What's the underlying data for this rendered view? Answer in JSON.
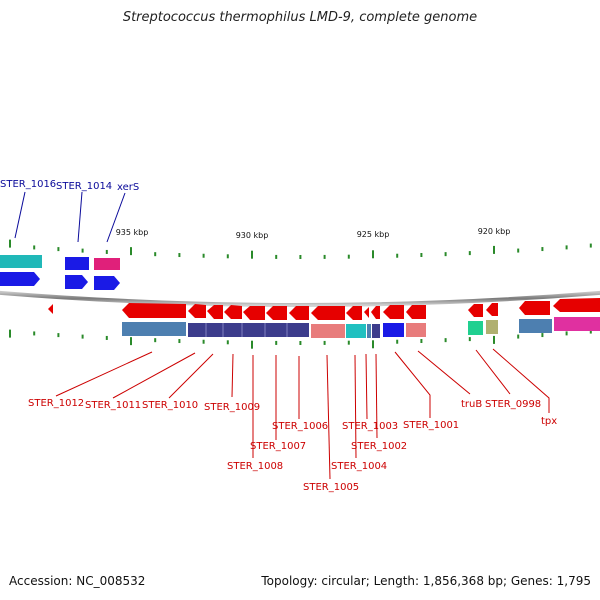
{
  "title": "Streptococcus thermophilus LMD-9, complete genome",
  "footer": {
    "accession": "Accession: NC_008532",
    "topology": "Topology: circular; Length: 1,856,368 bp; Genes: 1,795"
  },
  "scale_labels": [
    {
      "kbp": 935,
      "text": "935 kbp"
    },
    {
      "kbp": 930,
      "text": "930 kbp"
    },
    {
      "kbp": 925,
      "text": "925 kbp"
    },
    {
      "kbp": 920,
      "text": "920 kbp"
    }
  ],
  "colors": {
    "backbone": "#888888",
    "label_forward": "#0a0a9a",
    "label_reverse": "#cc0000",
    "tick": "#2a8a2a",
    "forward_gene": "#1a1ae6",
    "reverse_gene": "#e60000"
  },
  "top_labels": [
    {
      "text": "STER_1016",
      "color": "#0a0a9a"
    },
    {
      "text": "STER_1014",
      "color": "#0a0a9a"
    },
    {
      "text": "xerS",
      "color": "#0a0a9a"
    }
  ],
  "bottom_labels": [
    {
      "text": "STER_1012"
    },
    {
      "text": "STER_1011"
    },
    {
      "text": "STER_1010"
    },
    {
      "text": "STER_1009"
    },
    {
      "text": "STER_1008"
    },
    {
      "text": "STER_1007"
    },
    {
      "text": "STER_1006"
    },
    {
      "text": "STER_1005"
    },
    {
      "text": "STER_1004"
    },
    {
      "text": "STER_1003"
    },
    {
      "text": "STER_1002"
    },
    {
      "text": "STER_1001"
    },
    {
      "text": "truB"
    },
    {
      "text": "STER_0998"
    },
    {
      "text": "tpx"
    }
  ],
  "feature_colors": {
    "teal": "#20b8b8",
    "blue": "#1a1ae6",
    "magenta": "#e0207a",
    "steel": "#4d7fb0",
    "navy": "#3c3c8c",
    "salmon": "#e87c7c",
    "cyan": "#20c0c0",
    "green": "#20d090",
    "olive": "#b0b070",
    "pink": "#e030a0"
  }
}
